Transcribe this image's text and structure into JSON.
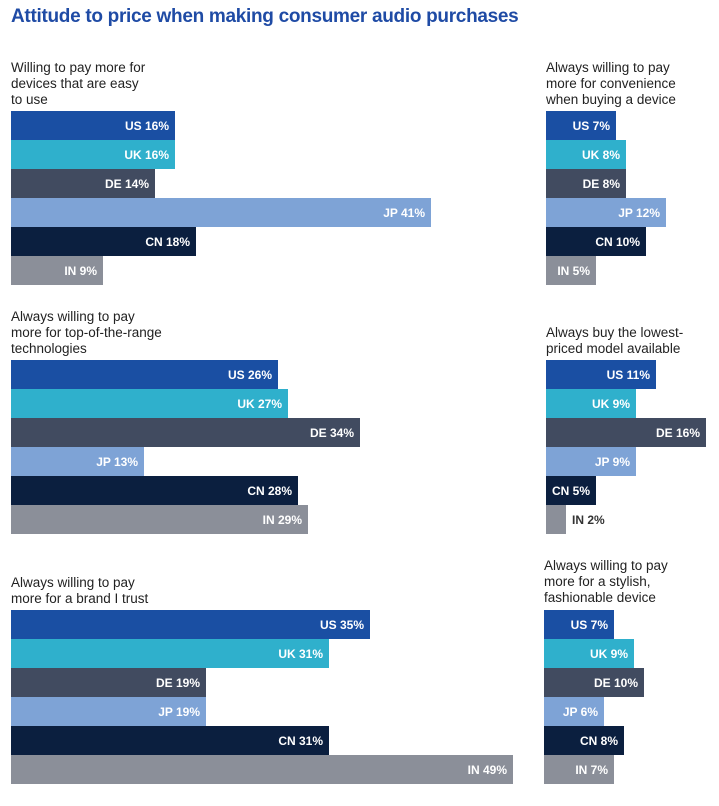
{
  "header": {
    "title": "Attitude to price when making consumer audio purchases"
  },
  "colors": {
    "US": "#1a4fa3",
    "UK": "#2fb0cc",
    "DE": "#414b60",
    "JP": "#7ea3d6",
    "CN": "#0b1f3f",
    "IN": "#8b8f99"
  },
  "chart_data": [
    {
      "type": "bar",
      "title": "Willing to pay more for\ndevices that are easy\nto use",
      "categories": [
        "US",
        "UK",
        "DE",
        "JP",
        "CN",
        "IN"
      ],
      "values": [
        16,
        16,
        14,
        41,
        18,
        9
      ],
      "labels": [
        "US 16%",
        "UK 16%",
        "DE 14%",
        "JP 41%",
        "CN 18%",
        "IN 9%"
      ],
      "unit": "%",
      "xlim": [
        0,
        50
      ]
    },
    {
      "type": "bar",
      "title": "Always willing to pay\nmore for convenience\nwhen buying a device",
      "categories": [
        "US",
        "UK",
        "DE",
        "JP",
        "CN",
        "IN"
      ],
      "values": [
        7,
        8,
        8,
        12,
        10,
        5
      ],
      "labels": [
        "US 7%",
        "UK 8%",
        "DE 8%",
        "JP 12%",
        "CN 10%",
        "IN 5%"
      ],
      "unit": "%",
      "xlim": [
        0,
        16
      ]
    },
    {
      "type": "bar",
      "title": "Always willing to pay\nmore for top-of-the-range\ntechnologies",
      "categories": [
        "US",
        "UK",
        "DE",
        "JP",
        "CN",
        "IN"
      ],
      "values": [
        26,
        27,
        34,
        13,
        28,
        29
      ],
      "labels": [
        "US 26%",
        "UK 27%",
        "DE 34%",
        "JP 13%",
        "CN 28%",
        "IN 29%"
      ],
      "unit": "%",
      "xlim": [
        0,
        50
      ]
    },
    {
      "type": "bar",
      "title": "Always buy the lowest-\npriced model available",
      "categories": [
        "US",
        "UK",
        "DE",
        "JP",
        "CN",
        "IN"
      ],
      "values": [
        11,
        9,
        16,
        9,
        5,
        2
      ],
      "labels": [
        "US 11%",
        "UK 9%",
        "DE 16%",
        "JP 9%",
        "CN 5%",
        "IN 2%"
      ],
      "unit": "%",
      "xlim": [
        0,
        16
      ]
    },
    {
      "type": "bar",
      "title": "Always willing to pay\nmore for a brand I trust",
      "categories": [
        "US",
        "UK",
        "DE",
        "JP",
        "CN",
        "IN"
      ],
      "values": [
        35,
        31,
        19,
        19,
        31,
        49
      ],
      "labels": [
        "US 35%",
        "UK 31%",
        "DE 19%",
        "JP 19%",
        "CN 31%",
        "IN 49%"
      ],
      "unit": "%",
      "xlim": [
        0,
        50
      ]
    },
    {
      "type": "bar",
      "title": "Always willing to pay\nmore for a stylish,\nfashionable device",
      "categories": [
        "US",
        "UK",
        "DE",
        "JP",
        "CN",
        "IN"
      ],
      "values": [
        7,
        9,
        10,
        6,
        8,
        7
      ],
      "labels": [
        "US 7%",
        "UK 9%",
        "DE 10%",
        "JP 6%",
        "CN 8%",
        "IN 7%"
      ],
      "unit": "%",
      "xlim": [
        0,
        16
      ]
    }
  ]
}
